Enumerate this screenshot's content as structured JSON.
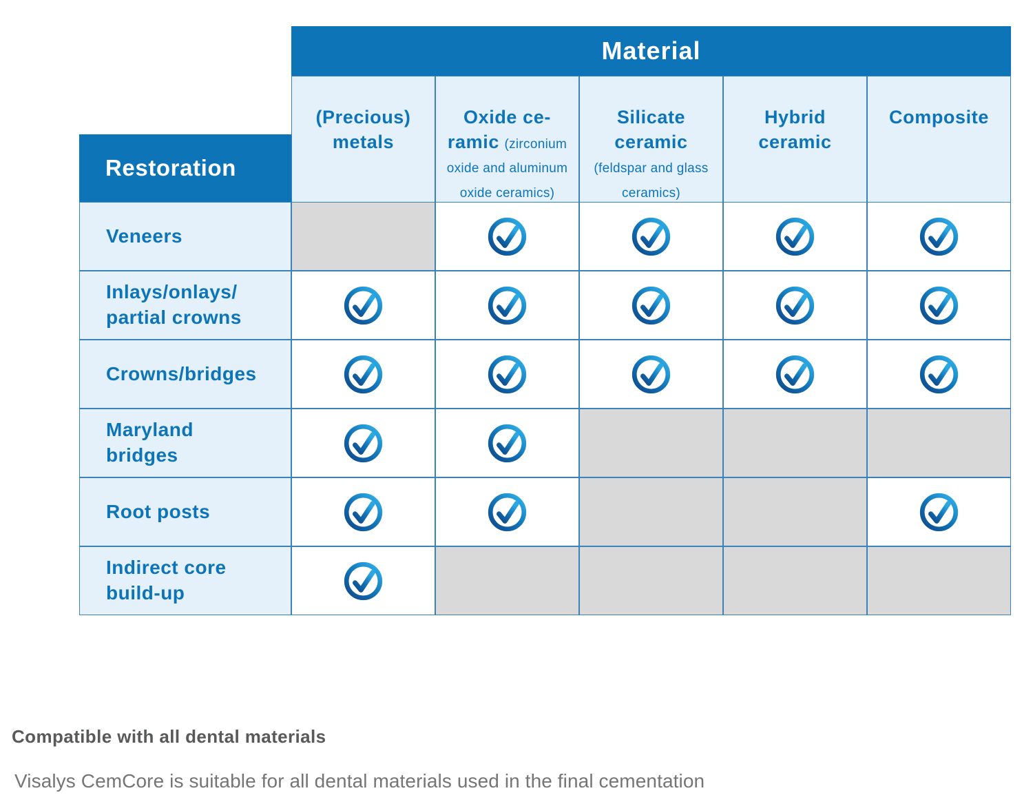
{
  "colors": {
    "header_blue": "#0e74b8",
    "cell_light_blue": "#e4f1fa",
    "not_applicable_gray": "#d9d9d9",
    "grid_border_blue": "#3b82bb",
    "text_blue": "#0e74b8",
    "check_gradient_dark": "#0f4d8e",
    "check_gradient_mid": "#1172b6",
    "check_gradient_light": "#2ba7e1",
    "footer_heading_gray": "#58595b",
    "footer_sub_gray": "#757575"
  },
  "table": {
    "material_label": "Material",
    "restoration_label": "Restoration",
    "columns": [
      {
        "title": "(Precious)\nmetals",
        "note": ""
      },
      {
        "title": "Oxide ce-\nramic",
        "note": "(zirconium oxide and aluminum oxide ceramics)"
      },
      {
        "title": "Silicate\nceramic",
        "note": "(feldspar and glass ceramics)"
      },
      {
        "title": "Hybrid\nceramic",
        "note": ""
      },
      {
        "title": "Composite",
        "note": ""
      }
    ],
    "rows": [
      {
        "label": "Veneers",
        "cells": [
          "na",
          "check",
          "check",
          "check",
          "check"
        ]
      },
      {
        "label": "Inlays/onlays/\npartial crowns",
        "cells": [
          "check",
          "check",
          "check",
          "check",
          "check"
        ]
      },
      {
        "label": "Crowns/bridges",
        "cells": [
          "check",
          "check",
          "check",
          "check",
          "check"
        ]
      },
      {
        "label": "Maryland\nbridges",
        "cells": [
          "check",
          "check",
          "na",
          "na",
          "na"
        ]
      },
      {
        "label": "Root posts",
        "cells": [
          "check",
          "check",
          "na",
          "na",
          "check"
        ]
      },
      {
        "label": "Indirect core\nbuild-up",
        "cells": [
          "check",
          "na",
          "na",
          "na",
          "na"
        ]
      }
    ]
  },
  "footer": {
    "heading": "Compatible with all dental materials",
    "subtext": "Visalys CemCore is suitable for all dental materials used in the final cementation"
  }
}
